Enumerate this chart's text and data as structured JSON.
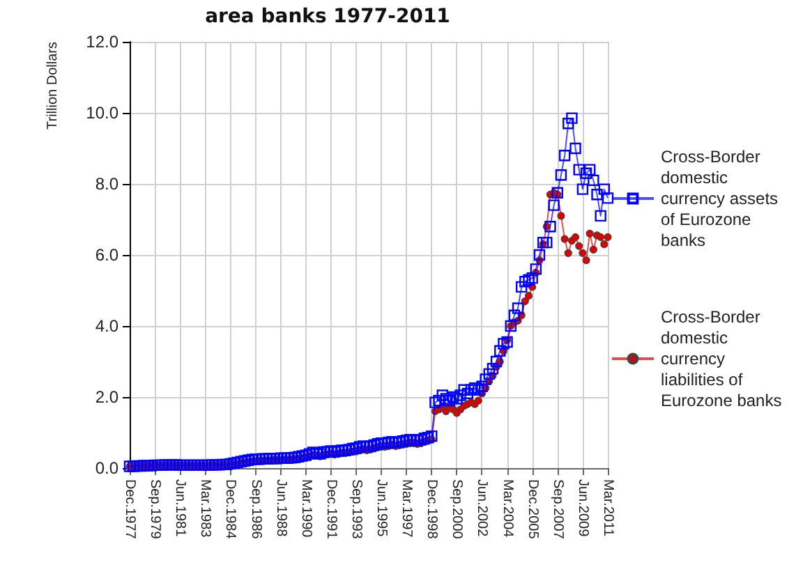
{
  "chart_data": {
    "type": "line",
    "title": "area banks 1977-2011",
    "ylabel": "Trillion Dollars",
    "categories": [
      "Dec.1977",
      null,
      null,
      null,
      null,
      null,
      null,
      "Sep.1979",
      null,
      null,
      null,
      null,
      null,
      null,
      "Jun.1981",
      null,
      null,
      null,
      null,
      null,
      null,
      "Mar.1983",
      null,
      null,
      null,
      null,
      null,
      null,
      "Dec.1984",
      null,
      null,
      null,
      null,
      null,
      null,
      "Sep.1986",
      null,
      null,
      null,
      null,
      null,
      null,
      "Jun.1988",
      null,
      null,
      null,
      null,
      null,
      null,
      "Mar.1990",
      null,
      null,
      null,
      null,
      null,
      null,
      "Dec.1991",
      null,
      null,
      null,
      null,
      null,
      null,
      "Sep.1993",
      null,
      null,
      null,
      null,
      null,
      null,
      "Jun.1995",
      null,
      null,
      null,
      null,
      null,
      null,
      "Mar.1997",
      null,
      null,
      null,
      null,
      null,
      null,
      "Dec.1998",
      null,
      null,
      null,
      null,
      null,
      null,
      "Sep.2000",
      null,
      null,
      null,
      null,
      null,
      null,
      "Jun.2002",
      null,
      null,
      null,
      null,
      null,
      null,
      "Mar.2004",
      null,
      null,
      null,
      null,
      null,
      null,
      "Dec.2005",
      null,
      null,
      null,
      null,
      null,
      null,
      "Sep.2007",
      null,
      null,
      null,
      null,
      null,
      null,
      "Jun.2009",
      null,
      null,
      null,
      null,
      null,
      null,
      "Mar.2011"
    ],
    "series": [
      {
        "name": "Cross-Border domestic currency assets of Eurozone banks",
        "color": "#0000ff",
        "marker": "square",
        "values": [
          0.05,
          0.05,
          0.06,
          0.06,
          0.07,
          0.07,
          0.07,
          0.08,
          0.08,
          0.08,
          0.09,
          0.09,
          0.09,
          0.09,
          0.08,
          0.08,
          0.08,
          0.08,
          0.08,
          0.08,
          0.08,
          0.08,
          0.08,
          0.09,
          0.09,
          0.09,
          0.1,
          0.1,
          0.12,
          0.14,
          0.16,
          0.18,
          0.2,
          0.22,
          0.24,
          0.25,
          0.25,
          0.26,
          0.26,
          0.27,
          0.27,
          0.27,
          0.28,
          0.28,
          0.28,
          0.29,
          0.3,
          0.32,
          0.34,
          0.36,
          0.4,
          0.44,
          0.42,
          0.4,
          0.45,
          0.46,
          0.48,
          0.46,
          0.48,
          0.5,
          0.5,
          0.52,
          0.55,
          0.56,
          0.6,
          0.62,
          0.6,
          0.62,
          0.65,
          0.68,
          0.7,
          0.7,
          0.72,
          0.74,
          0.72,
          0.74,
          0.76,
          0.78,
          0.8,
          0.8,
          0.78,
          0.8,
          0.84,
          0.86,
          0.9,
          1.85,
          1.9,
          2.05,
          1.95,
          1.9,
          2.0,
          1.95,
          2.05,
          2.2,
          2.1,
          2.2,
          2.25,
          2.2,
          2.3,
          2.5,
          2.65,
          2.8,
          3.0,
          3.3,
          3.5,
          3.55,
          4.0,
          4.3,
          4.5,
          5.1,
          5.25,
          5.3,
          5.35,
          5.6,
          6.0,
          6.35,
          6.35,
          6.8,
          7.4,
          7.75,
          8.25,
          8.8,
          9.7,
          9.85,
          9.0,
          8.4,
          7.85,
          8.3,
          8.4,
          8.1,
          7.7,
          7.1,
          7.85,
          7.6
        ]
      },
      {
        "name": "Cross-Border domestic currency liabilities of Eurozone banks",
        "color": "#e00000",
        "marker": "circle",
        "values": [
          0.04,
          0.04,
          0.05,
          0.05,
          0.06,
          0.06,
          0.06,
          0.07,
          0.07,
          0.07,
          0.08,
          0.08,
          0.08,
          0.08,
          0.07,
          0.07,
          0.07,
          0.07,
          0.07,
          0.07,
          0.07,
          0.07,
          0.07,
          0.08,
          0.08,
          0.08,
          0.09,
          0.09,
          0.1,
          0.11,
          0.12,
          0.14,
          0.15,
          0.17,
          0.18,
          0.19,
          0.2,
          0.2,
          0.21,
          0.21,
          0.22,
          0.22,
          0.22,
          0.23,
          0.23,
          0.24,
          0.25,
          0.26,
          0.28,
          0.3,
          0.33,
          0.36,
          0.35,
          0.33,
          0.37,
          0.38,
          0.4,
          0.38,
          0.4,
          0.42,
          0.42,
          0.44,
          0.46,
          0.47,
          0.5,
          0.52,
          0.5,
          0.52,
          0.55,
          0.58,
          0.6,
          0.6,
          0.62,
          0.64,
          0.62,
          0.64,
          0.66,
          0.68,
          0.7,
          0.7,
          0.68,
          0.7,
          0.74,
          0.76,
          0.8,
          1.6,
          1.65,
          1.7,
          1.6,
          1.7,
          1.65,
          1.55,
          1.65,
          1.75,
          1.8,
          1.85,
          1.8,
          1.9,
          2.1,
          2.25,
          2.45,
          2.6,
          2.85,
          3.0,
          3.3,
          3.6,
          4.0,
          4.1,
          4.15,
          4.3,
          4.7,
          4.85,
          5.1,
          5.5,
          5.85,
          6.3,
          6.8,
          7.7,
          7.75,
          7.7,
          7.1,
          6.45,
          6.05,
          6.4,
          6.5,
          6.25,
          6.05,
          5.85,
          6.6,
          6.15,
          6.55,
          6.5,
          6.3,
          6.5
        ]
      }
    ],
    "ylim": [
      0,
      12
    ],
    "yticks": [
      {
        "value": 0,
        "label": "0.0"
      },
      {
        "value": 2,
        "label": "2.0"
      },
      {
        "value": 4,
        "label": "4.0"
      },
      {
        "value": 6,
        "label": "6.0"
      },
      {
        "value": 8,
        "label": "8.0"
      },
      {
        "value": 10,
        "label": "10.0"
      },
      {
        "value": 12,
        "label": "12.0"
      }
    ],
    "grid": true,
    "legend": "right"
  }
}
